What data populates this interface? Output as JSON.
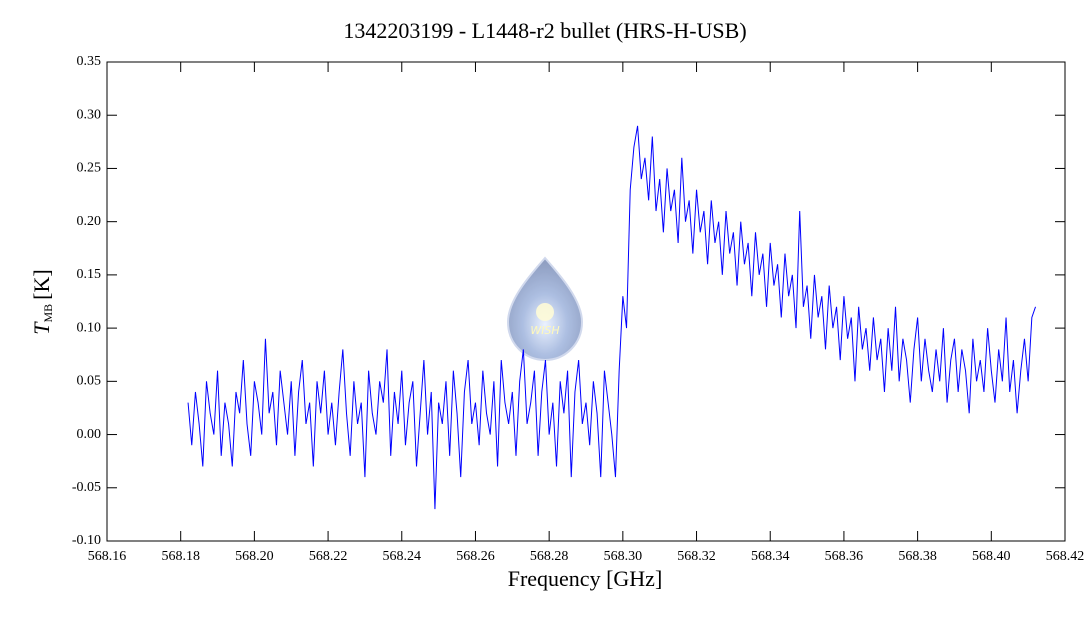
{
  "chart_data": {
    "type": "line",
    "title": "1342203199 - L1448-r2 bullet (HRS-H-USB)",
    "xlabel": "Frequency [GHz]",
    "ylabel": [
      "T",
      "MB",
      "[K]"
    ],
    "watermark": "WISH",
    "color": "#0000ff",
    "xlim": [
      568.16,
      568.42
    ],
    "ylim": [
      -0.1,
      0.35
    ],
    "xticks": [
      568.16,
      568.18,
      {
        "value": 568.2,
        "label": "568.20"
      },
      568.22,
      568.24,
      568.26,
      568.28,
      {
        "value": 568.3,
        "label": "568.30"
      },
      568.32,
      568.34,
      568.36,
      568.38,
      {
        "value": 568.4,
        "label": "568.40"
      },
      568.42
    ],
    "yticks": [
      {
        "value": -0.1,
        "label": "-0.10"
      },
      -0.05,
      {
        "value": 0,
        "label": "0.00"
      },
      0.05,
      {
        "value": 0.1,
        "label": "0.10"
      },
      0.15,
      {
        "value": 0.2,
        "label": "0.20"
      },
      0.25,
      {
        "value": 0.3,
        "label": "0.30"
      },
      0.35
    ],
    "x": [
      568.182,
      568.183,
      568.184,
      568.185,
      568.186,
      568.187,
      568.188,
      568.189,
      568.19,
      568.191,
      568.192,
      568.193,
      568.194,
      568.195,
      568.196,
      568.197,
      568.198,
      568.199,
      568.2,
      568.201,
      568.202,
      568.203,
      568.204,
      568.205,
      568.206,
      568.207,
      568.208,
      568.209,
      568.21,
      568.211,
      568.212,
      568.213,
      568.214,
      568.215,
      568.216,
      568.217,
      568.218,
      568.219,
      568.22,
      568.221,
      568.222,
      568.223,
      568.224,
      568.225,
      568.226,
      568.227,
      568.228,
      568.229,
      568.23,
      568.231,
      568.232,
      568.233,
      568.234,
      568.235,
      568.236,
      568.237,
      568.238,
      568.239,
      568.24,
      568.241,
      568.242,
      568.243,
      568.244,
      568.245,
      568.246,
      568.247,
      568.248,
      568.249,
      568.25,
      568.251,
      568.252,
      568.253,
      568.254,
      568.255,
      568.256,
      568.257,
      568.258,
      568.259,
      568.26,
      568.261,
      568.262,
      568.263,
      568.264,
      568.265,
      568.266,
      568.267,
      568.268,
      568.269,
      568.27,
      568.271,
      568.272,
      568.273,
      568.274,
      568.275,
      568.276,
      568.277,
      568.278,
      568.279,
      568.28,
      568.281,
      568.282,
      568.283,
      568.284,
      568.285,
      568.286,
      568.287,
      568.288,
      568.289,
      568.29,
      568.291,
      568.292,
      568.293,
      568.294,
      568.295,
      568.296,
      568.297,
      568.298,
      568.299,
      568.3,
      568.301,
      568.302,
      568.303,
      568.304,
      568.305,
      568.306,
      568.307,
      568.308,
      568.309,
      568.31,
      568.311,
      568.312,
      568.313,
      568.314,
      568.315,
      568.316,
      568.317,
      568.318,
      568.319,
      568.32,
      568.321,
      568.322,
      568.323,
      568.324,
      568.325,
      568.326,
      568.327,
      568.328,
      568.329,
      568.33,
      568.331,
      568.332,
      568.333,
      568.334,
      568.335,
      568.336,
      568.337,
      568.338,
      568.339,
      568.34,
      568.341,
      568.342,
      568.343,
      568.344,
      568.345,
      568.346,
      568.347,
      568.348,
      568.349,
      568.35,
      568.351,
      568.352,
      568.353,
      568.354,
      568.355,
      568.356,
      568.357,
      568.358,
      568.359,
      568.36,
      568.361,
      568.362,
      568.363,
      568.364,
      568.365,
      568.366,
      568.367,
      568.368,
      568.369,
      568.37,
      568.371,
      568.372,
      568.373,
      568.374,
      568.375,
      568.376,
      568.377,
      568.378,
      568.379,
      568.38,
      568.381,
      568.382,
      568.383,
      568.384,
      568.385,
      568.386,
      568.387,
      568.388,
      568.389,
      568.39,
      568.391,
      568.392,
      568.393,
      568.394,
      568.395,
      568.396,
      568.397,
      568.398,
      568.399,
      568.4,
      568.401,
      568.402,
      568.403,
      568.404,
      568.405,
      568.406,
      568.407,
      568.408,
      568.409,
      568.41,
      568.411,
      568.412
    ],
    "values": [
      0.03,
      -0.01,
      0.04,
      0.01,
      -0.03,
      0.05,
      0.02,
      0.0,
      0.06,
      -0.02,
      0.03,
      0.01,
      -0.03,
      0.04,
      0.02,
      0.07,
      0.01,
      -0.02,
      0.05,
      0.03,
      0.0,
      0.09,
      0.02,
      0.04,
      -0.01,
      0.06,
      0.03,
      0.0,
      0.05,
      -0.02,
      0.04,
      0.07,
      0.01,
      0.03,
      -0.03,
      0.05,
      0.02,
      0.06,
      0.0,
      0.03,
      -0.01,
      0.04,
      0.08,
      0.02,
      -0.02,
      0.05,
      0.01,
      0.03,
      -0.04,
      0.06,
      0.02,
      0.0,
      0.05,
      0.03,
      0.08,
      -0.02,
      0.04,
      0.01,
      0.06,
      -0.01,
      0.03,
      0.05,
      -0.03,
      0.02,
      0.07,
      0.0,
      0.04,
      -0.07,
      0.03,
      0.01,
      0.05,
      -0.02,
      0.06,
      0.02,
      -0.04,
      0.04,
      0.07,
      0.01,
      0.03,
      -0.01,
      0.06,
      0.02,
      0.0,
      0.05,
      -0.03,
      0.07,
      0.03,
      0.01,
      0.04,
      -0.02,
      0.05,
      0.08,
      0.01,
      0.03,
      0.06,
      -0.02,
      0.04,
      0.07,
      0.0,
      0.03,
      -0.03,
      0.05,
      0.02,
      0.06,
      -0.04,
      0.04,
      0.07,
      0.01,
      0.03,
      -0.01,
      0.05,
      0.02,
      -0.04,
      0.06,
      0.03,
      0.0,
      -0.04,
      0.06,
      0.13,
      0.1,
      0.23,
      0.27,
      0.29,
      0.24,
      0.26,
      0.22,
      0.28,
      0.21,
      0.24,
      0.19,
      0.25,
      0.21,
      0.23,
      0.18,
      0.26,
      0.2,
      0.22,
      0.17,
      0.23,
      0.19,
      0.21,
      0.16,
      0.22,
      0.18,
      0.2,
      0.15,
      0.21,
      0.17,
      0.19,
      0.14,
      0.2,
      0.16,
      0.18,
      0.13,
      0.19,
      0.15,
      0.17,
      0.12,
      0.18,
      0.14,
      0.16,
      0.11,
      0.17,
      0.13,
      0.15,
      0.1,
      0.21,
      0.12,
      0.14,
      0.09,
      0.15,
      0.11,
      0.13,
      0.08,
      0.14,
      0.1,
      0.12,
      0.07,
      0.13,
      0.09,
      0.11,
      0.05,
      0.12,
      0.08,
      0.1,
      0.06,
      0.11,
      0.07,
      0.09,
      0.04,
      0.1,
      0.06,
      0.12,
      0.05,
      0.09,
      0.07,
      0.03,
      0.08,
      0.11,
      0.05,
      0.09,
      0.06,
      0.04,
      0.08,
      0.05,
      0.1,
      0.03,
      0.07,
      0.09,
      0.04,
      0.08,
      0.06,
      0.02,
      0.09,
      0.05,
      0.07,
      0.04,
      0.1,
      0.06,
      0.03,
      0.08,
      0.05,
      0.11,
      0.04,
      0.07,
      0.02,
      0.06,
      0.09,
      0.05,
      0.11,
      0.12
    ]
  }
}
